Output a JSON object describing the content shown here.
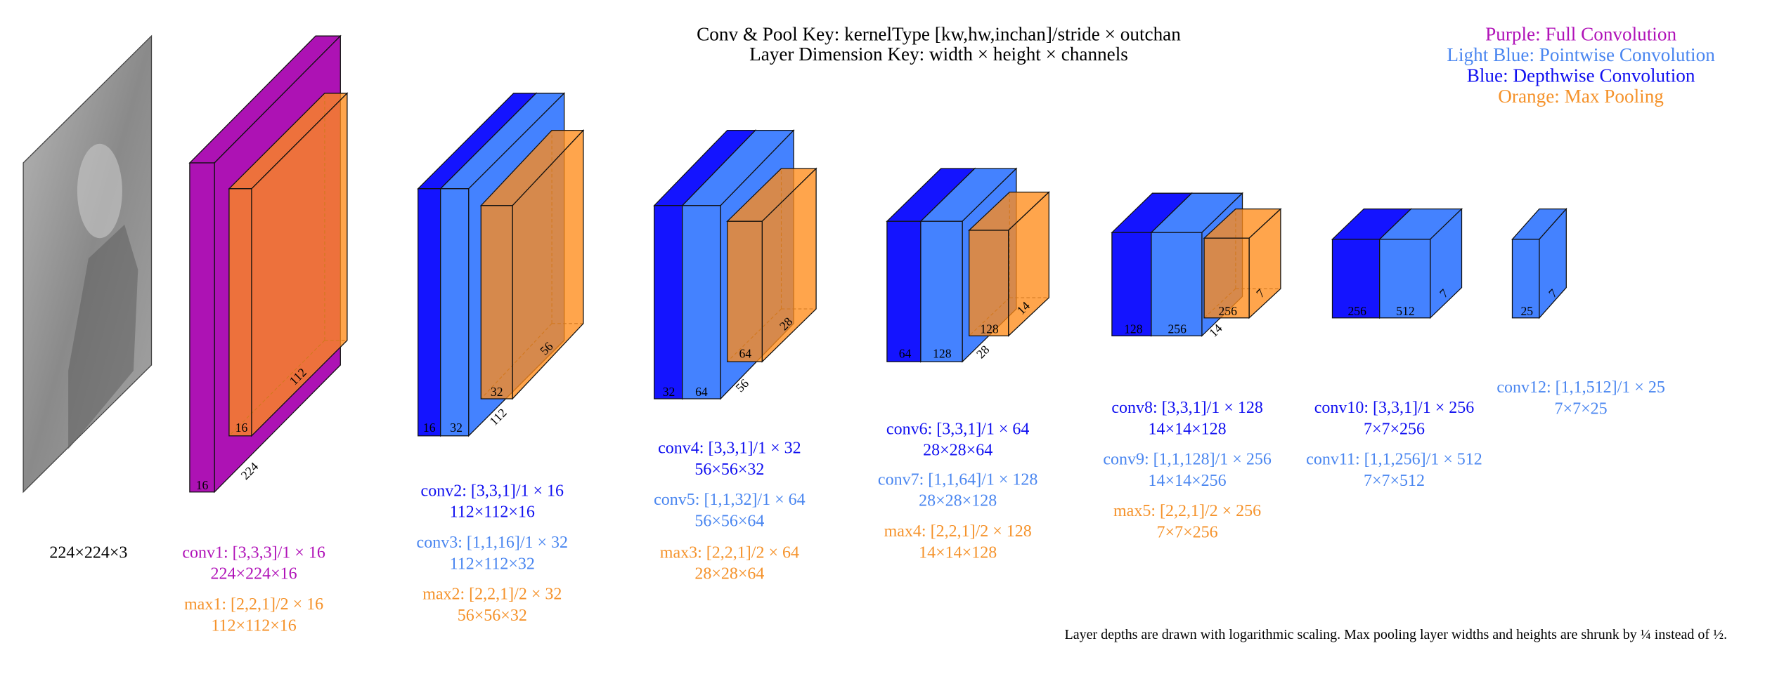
{
  "header": {
    "lines": [
      "Conv & Pool Key: kernelType [kw,hw,inchan]/stride × outchan",
      "Layer Dimension Key: width × height × channels"
    ]
  },
  "legend": [
    {
      "text": "Purple: Full Convolution",
      "color": "#b012b8"
    },
    {
      "text": "Light Blue: Pointwise Convolution",
      "color": "#4a86f0"
    },
    {
      "text": "Blue: Depthwise Convolution",
      "color": "#1010f0"
    },
    {
      "text": "Orange: Max Pooling",
      "color": "#f5922a"
    }
  ],
  "input_label": "224×224×3",
  "boxes": [
    {
      "color": "#ad12b4",
      "labels": [
        16,
        224
      ]
    },
    {
      "color": "#ff8c1a",
      "labels": [
        16,
        112
      ]
    },
    {
      "color": "#1414ff",
      "labels": [
        16
      ]
    },
    {
      "color": "#4482ff",
      "labels": [
        32,
        112
      ]
    },
    {
      "color": "#ff8c1a",
      "labels": [
        32,
        56
      ]
    },
    {
      "color": "#1414ff",
      "labels": [
        32
      ]
    },
    {
      "color": "#4482ff",
      "labels": [
        64,
        56
      ]
    },
    {
      "color": "#ff8c1a",
      "labels": [
        64,
        28
      ]
    },
    {
      "color": "#1414ff",
      "labels": [
        64
      ]
    },
    {
      "color": "#4482ff",
      "labels": [
        128,
        28
      ]
    },
    {
      "color": "#ff8c1a",
      "labels": [
        128,
        14
      ]
    },
    {
      "color": "#1414ff",
      "labels": [
        128
      ]
    },
    {
      "color": "#4482ff",
      "labels": [
        256,
        14
      ]
    },
    {
      "color": "#ff8c1a",
      "labels": [
        256,
        7
      ]
    },
    {
      "color": "#1414ff",
      "labels": [
        256
      ]
    },
    {
      "color": "#4482ff",
      "labels": [
        512,
        7
      ]
    },
    {
      "color": "#4482ff",
      "labels": [
        25,
        7
      ]
    }
  ],
  "captions": [
    {
      "spec": "conv1: [3,3,3]/1 × 16",
      "dims": "224×224×16",
      "color": "#b012b8"
    },
    {
      "spec": "max1: [2,2,1]/2 × 16",
      "dims": "112×112×16",
      "color": "#f5922a"
    },
    {
      "spec": "conv2: [3,3,1]/1 × 16",
      "dims": "112×112×16",
      "color": "#1010f0"
    },
    {
      "spec": "conv3: [1,1,16]/1 × 32",
      "dims": "112×112×32",
      "color": "#4a86f0"
    },
    {
      "spec": "max2: [2,2,1]/2 × 32",
      "dims": "56×56×32",
      "color": "#f5922a"
    },
    {
      "spec": "conv4: [3,3,1]/1 × 32",
      "dims": "56×56×32",
      "color": "#1010f0"
    },
    {
      "spec": "conv5: [1,1,32]/1 × 64",
      "dims": "56×56×64",
      "color": "#4a86f0"
    },
    {
      "spec": "max3: [2,2,1]/2 × 64",
      "dims": "28×28×64",
      "color": "#f5922a"
    },
    {
      "spec": "conv6: [3,3,1]/1 × 64",
      "dims": "28×28×64",
      "color": "#1010f0"
    },
    {
      "spec": "conv7: [1,1,64]/1 × 128",
      "dims": "28×28×128",
      "color": "#4a86f0"
    },
    {
      "spec": "max4: [2,2,1]/2 × 128",
      "dims": "14×14×128",
      "color": "#f5922a"
    },
    {
      "spec": "conv8: [3,3,1]/1 × 128",
      "dims": "14×14×128",
      "color": "#1010f0"
    },
    {
      "spec": "conv9: [1,1,128]/1 × 256",
      "dims": "14×14×256",
      "color": "#4a86f0"
    },
    {
      "spec": "max5: [2,2,1]/2 × 256",
      "dims": "7×7×256",
      "color": "#f5922a"
    },
    {
      "spec": "conv10: [3,3,1]/1 × 256",
      "dims": "7×7×256",
      "color": "#1010f0"
    },
    {
      "spec": "conv11: [1,1,256]/1 × 512",
      "dims": "7×7×512",
      "color": "#4a86f0"
    },
    {
      "spec": "conv12: [1,1,512]/1 × 25",
      "dims": "7×7×25",
      "color": "#4a86f0"
    }
  ],
  "footnote": "Layer depths are drawn with logarithmic scaling. Max pooling layer widths and heights are shrunk by ¼ instead of ½."
}
